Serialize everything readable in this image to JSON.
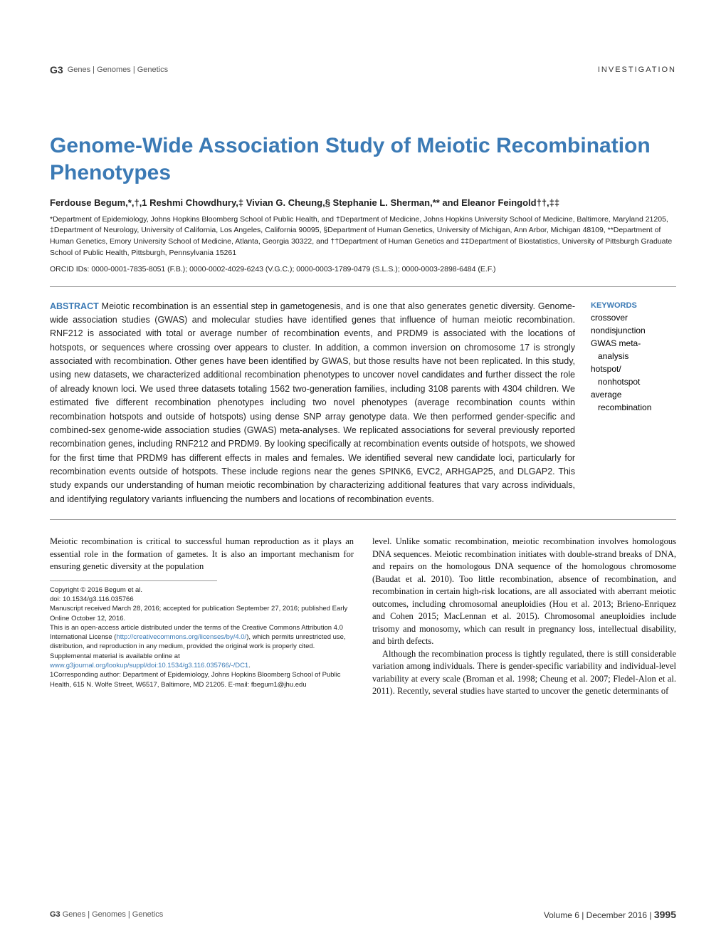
{
  "header": {
    "logo_mark": "G3",
    "logo_text": "Genes | Genomes | Genetics",
    "section": "INVESTIGATION"
  },
  "title": "Genome-Wide Association Study of Meiotic Recombination Phenotypes",
  "authors": "Ferdouse Begum,*,†,1 Reshmi Chowdhury,‡ Vivian G. Cheung,§ Stephanie L. Sherman,** and Eleanor Feingold††,‡‡",
  "affiliations": "*Department of Epidemiology, Johns Hopkins Bloomberg School of Public Health, and †Department of Medicine, Johns Hopkins University School of Medicine, Baltimore, Maryland 21205, ‡Department of Neurology, University of California, Los Angeles, California 90095, §Department of Human Genetics, University of Michigan, Ann Arbor, Michigan 48109, **Department of Human Genetics, Emory University School of Medicine, Atlanta, Georgia 30322, and ††Department of Human Genetics and ‡‡Department of Biostatistics, University of Pittsburgh Graduate School of Public Health, Pittsburgh, Pennsylvania 15261",
  "orcid": "ORCID IDs: 0000-0001-7835-8051 (F.B.); 0000-0002-4029-6243 (V.G.C.); 0000-0003-1789-0479 (S.L.S.); 0000-0003-2898-6484 (E.F.)",
  "abstract_label": "ABSTRACT",
  "abstract": "Meiotic recombination is an essential step in gametogenesis, and is one that also generates genetic diversity. Genome-wide association studies (GWAS) and molecular studies have identified genes that influence of human meiotic recombination. RNF212 is associated with total or average number of recombination events, and PRDM9 is associated with the locations of hotspots, or sequences where crossing over appears to cluster. In addition, a common inversion on chromosome 17 is strongly associated with recombination. Other genes have been identified by GWAS, but those results have not been replicated. In this study, using new datasets, we characterized additional recombination phenotypes to uncover novel candidates and further dissect the role of already known loci. We used three datasets totaling 1562 two-generation families, including 3108 parents with 4304 children. We estimated five different recombination phenotypes including two novel phenotypes (average recombination counts within recombination hotspots and outside of hotspots) using dense SNP array genotype data. We then performed gender-specific and combined-sex genome-wide association studies (GWAS) meta-analyses. We replicated associations for several previously reported recombination genes, including RNF212 and PRDM9. By looking specifically at recombination events outside of hotspots, we showed for the first time that PRDM9 has different effects in males and females. We identified several new candidate loci, particularly for recombination events outside of hotspots. These include regions near the genes SPINK6, EVC2, ARHGAP25, and DLGAP2. This study expands our understanding of human meiotic recombination by characterizing additional features that vary across individuals, and identifying regulatory variants influencing the numbers and locations of recombination events.",
  "keywords_heading": "KEYWORDS",
  "keywords": [
    {
      "text": "crossover",
      "indent": false
    },
    {
      "text": "nondisjunction",
      "indent": false
    },
    {
      "text": "GWAS meta-",
      "indent": false
    },
    {
      "text": "analysis",
      "indent": true
    },
    {
      "text": "hotspot/",
      "indent": false
    },
    {
      "text": "nonhotspot",
      "indent": true
    },
    {
      "text": "average",
      "indent": false
    },
    {
      "text": "recombination",
      "indent": true
    }
  ],
  "body_left_p1": "Meiotic recombination is critical to successful human reproduction as it plays an essential role in the formation of gametes. It is also an important mechanism for ensuring genetic diversity at the population",
  "meta": {
    "copyright": "Copyright © 2016 Begum et al.",
    "doi": "doi: 10.1534/g3.116.035766",
    "received": "Manuscript received March 28, 2016; accepted for publication September 27, 2016; published Early Online October 12, 2016.",
    "license1": "This is an open-access article distributed under the terms of the Creative Commons Attribution 4.0 International License (",
    "license_link": "http://creativecommons.org/licenses/by/4.0/",
    "license2": "), which permits unrestricted use, distribution, and reproduction in any medium, provided the original work is properly cited.",
    "supp1": "Supplemental material is available online at ",
    "supp_link": "www.g3journal.org/lookup/suppl/doi:10.1534/g3.116.035766/-/DC1",
    "supp2": ".",
    "corresp": "1Corresponding author: Department of Epidemiology, Johns Hopkins Bloomberg School of Public Health, 615 N. Wolfe Street, W6517, Baltimore, MD 21205. E-mail: fbegum1@jhu.edu"
  },
  "body_right_p1": "level. Unlike somatic recombination, meiotic recombination involves homologous DNA sequences. Meiotic recombination initiates with double-strand breaks of DNA, and repairs on the homologous DNA sequence of the homologous chromosome (Baudat et al. 2010). Too little recombination, absence of recombination, and recombination in certain high-risk locations, are all associated with aberrant meiotic outcomes, including chromosomal aneuploidies (Hou et al. 2013; Brieno-Enriquez and Cohen 2015; MacLennan et al. 2015). Chromosomal aneuploidies include trisomy and monosomy, which can result in pregnancy loss, intellectual disability, and birth defects.",
  "body_right_p2": "Although the recombination process is tightly regulated, there is still considerable variation among individuals. There is gender-specific variability and individual-level variability at every scale (Broman et al. 1998; Cheung et al. 2007; Fledel-Alon et al. 2011). Recently, several studies have started to uncover the genetic determinants of",
  "footer": {
    "logo_mark": "G3",
    "logo_text": "Genes | Genomes | Genetics",
    "issue": "Volume 6  |  December 2016  |  ",
    "page": "3995"
  },
  "colors": {
    "accent": "#3b7ab5",
    "text": "#222222",
    "rule": "#999999"
  }
}
